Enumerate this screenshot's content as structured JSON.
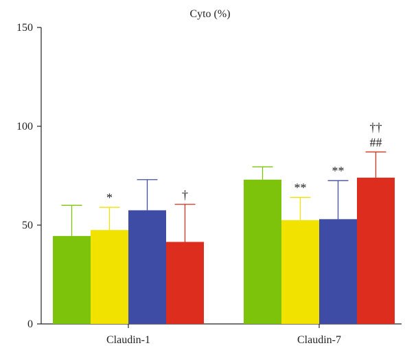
{
  "chart_data": {
    "type": "bar",
    "title": "Cyto (%)",
    "xlabel": "",
    "ylabel": "",
    "ylim": [
      0,
      150
    ],
    "yticks": [
      "0",
      "50",
      "100",
      "150"
    ],
    "categories": [
      "Claudin-1",
      "Claudin-7"
    ],
    "series": [
      {
        "color": "#7dc30b",
        "values": [
          44.5,
          73.0
        ],
        "errors": [
          15.5,
          6.5
        ],
        "annotations": [
          "",
          ""
        ]
      },
      {
        "color": "#f2e200",
        "values": [
          47.5,
          52.5
        ],
        "errors": [
          11.5,
          11.5
        ],
        "annotations": [
          "*",
          "**"
        ]
      },
      {
        "color": "#3f4ca6",
        "values": [
          57.5,
          53.0
        ],
        "errors": [
          15.5,
          19.5
        ],
        "annotations": [
          "",
          "**"
        ]
      },
      {
        "color": "#dd2d1e",
        "values": [
          41.5,
          74.0
        ],
        "errors": [
          19.0,
          13.0
        ],
        "annotations": [
          "†",
          "##|††"
        ]
      }
    ],
    "grid": false,
    "legend": "none"
  }
}
